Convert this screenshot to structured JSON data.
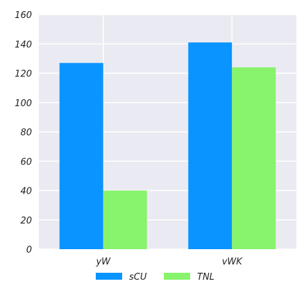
{
  "chart_data": {
    "type": "bar",
    "title": "",
    "xlabel": "",
    "ylabel": "",
    "categories": [
      "yW",
      "vWK"
    ],
    "series": [
      {
        "name": "sCU",
        "values": [
          127,
          141
        ],
        "color": "#0a94ff"
      },
      {
        "name": "TNL",
        "values": [
          40,
          124
        ],
        "color": "#88f36d"
      }
    ],
    "ylim": [
      0,
      160
    ],
    "yticks": [
      0,
      20,
      40,
      60,
      80,
      100,
      120,
      140,
      160
    ],
    "grid": true,
    "background_color": "#eaeaf2",
    "legend_placement": "bottom-center"
  }
}
